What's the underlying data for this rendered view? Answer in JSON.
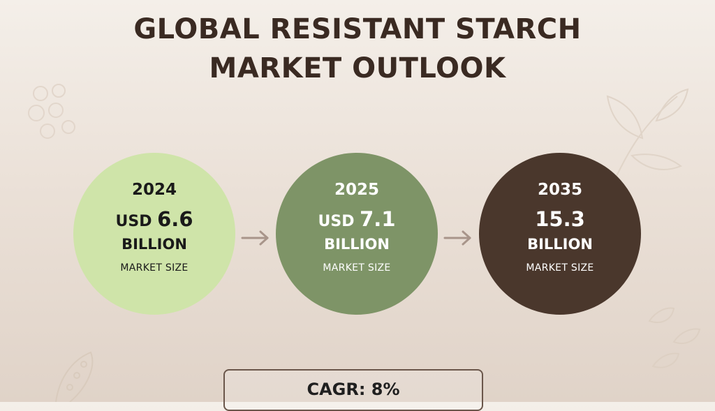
{
  "title": {
    "line1": "GLOBAL RESISTANT STARCH",
    "line2": "MARKET OUTLOOK"
  },
  "stats": [
    {
      "year": "2024",
      "currency": "USD",
      "value": "6.6",
      "unit": "BILLION",
      "label": "MARKET SIZE"
    },
    {
      "year": "2025",
      "currency": "USD",
      "value": "7.1",
      "unit": "BILLION",
      "label": "MARKET SIZE"
    },
    {
      "year": "2035",
      "currency": "",
      "value": "15.3",
      "unit": "BILLION",
      "label": "MARKET SIZE"
    }
  ],
  "cagr": "CAGR: 8%",
  "colors": {
    "circle_2024": "#cfe4a9",
    "circle_2025": "#7e9467",
    "circle_2035": "#4a372c",
    "title": "#3a2a22",
    "arrow": "#a8958a"
  },
  "icons": [
    "seeds-decoration-icon",
    "leaf-decoration-icon",
    "leaf-small-decoration-icon",
    "pod-decoration-icon",
    "arrow-right-icon"
  ]
}
